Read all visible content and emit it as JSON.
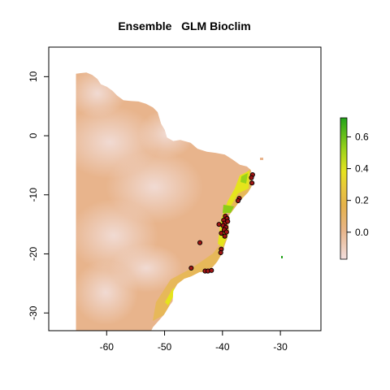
{
  "plot": {
    "title": "Ensemble   GLM Bioclim",
    "xlim": [
      -70,
      -23
    ],
    "ylim": [
      -33,
      15
    ],
    "x_ticks": [
      -60,
      -50,
      -40,
      -30
    ],
    "x_tick_labels": [
      "-60",
      "-50",
      "-40",
      "-30"
    ],
    "y_ticks": [
      -30,
      -20,
      -10,
      0,
      10
    ],
    "y_tick_labels": [
      "-30",
      "-20",
      "-10",
      "0",
      "10"
    ],
    "y_tick_label_rotation": "vertical"
  },
  "legend": {
    "type": "color-scale",
    "placement": "right",
    "range": [
      -0.17,
      0.72
    ],
    "ticks": [
      0.0,
      0.2,
      0.4,
      0.6
    ],
    "tick_labels": [
      "0.0",
      "0.2",
      "0.4",
      "0.6"
    ],
    "colors": [
      "#f2dede",
      "#e8b58a",
      "#e5b24a",
      "#e8c63d",
      "#e6e21f",
      "#9ad21a",
      "#22a31a"
    ]
  },
  "map_colors": {
    "low": "#f1dcd6",
    "mid": "#e8b48c",
    "coast_band": "#e6b850",
    "high_yellow": "#e5e41c",
    "high_green": "#8ccd18",
    "points_fill": "#a01414",
    "points_stroke": "#000000"
  },
  "occurrences": [
    {
      "lon": -34.8,
      "lat": -6.6
    },
    {
      "lon": -35.0,
      "lat": -7.1
    },
    {
      "lon": -34.9,
      "lat": -8.0
    },
    {
      "lon": -37.1,
      "lat": -10.6
    },
    {
      "lon": -37.3,
      "lat": -11.0
    },
    {
      "lon": -39.5,
      "lat": -13.6
    },
    {
      "lon": -39.2,
      "lat": -14.0
    },
    {
      "lon": -39.8,
      "lat": -14.3
    },
    {
      "lon": -39.6,
      "lat": -14.8
    },
    {
      "lon": -39.1,
      "lat": -14.5
    },
    {
      "lon": -39.9,
      "lat": -15.2
    },
    {
      "lon": -39.4,
      "lat": -15.5
    },
    {
      "lon": -40.6,
      "lat": -15.0
    },
    {
      "lon": -39.7,
      "lat": -15.9
    },
    {
      "lon": -39.3,
      "lat": -16.3
    },
    {
      "lon": -40.2,
      "lat": -16.5
    },
    {
      "lon": -39.6,
      "lat": -17.0
    },
    {
      "lon": -43.9,
      "lat": -18.1
    },
    {
      "lon": -40.2,
      "lat": -19.2
    },
    {
      "lon": -40.3,
      "lat": -19.8
    },
    {
      "lon": -45.4,
      "lat": -22.4
    },
    {
      "lon": -43.0,
      "lat": -22.9
    },
    {
      "lon": -42.5,
      "lat": -22.9
    },
    {
      "lon": -41.9,
      "lat": -22.8
    }
  ]
}
